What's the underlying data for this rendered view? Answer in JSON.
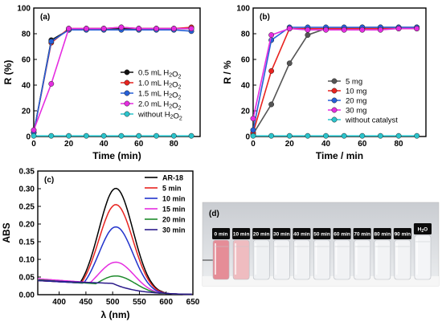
{
  "chart_data": [
    {
      "panel_label": "(a)",
      "type": "line",
      "xlabel": "Time (min)",
      "ylabel": "R (%)",
      "xlim": [
        0,
        95
      ],
      "ylim": [
        0,
        100
      ],
      "xticks": [
        0,
        20,
        40,
        60,
        80
      ],
      "yticks": [
        0,
        20,
        40,
        60,
        80,
        100
      ],
      "legend_position": "center-right",
      "series": [
        {
          "name": "0.5 mL H2O2",
          "color": "#111111",
          "x": [
            0,
            10,
            20,
            30,
            40,
            50,
            60,
            70,
            80,
            90
          ],
          "y": [
            3,
            75,
            83,
            84,
            84,
            84,
            84,
            84,
            84,
            84
          ]
        },
        {
          "name": "1.0 mL H2O2",
          "color": "#e8231f",
          "x": [
            0,
            10,
            20,
            30,
            40,
            50,
            60,
            70,
            80,
            90
          ],
          "y": [
            3,
            73,
            84,
            84,
            84,
            85,
            84,
            84,
            84,
            85
          ]
        },
        {
          "name": "1.5 mL H2O2",
          "color": "#2660d8",
          "x": [
            0,
            10,
            20,
            30,
            40,
            50,
            60,
            70,
            80,
            90
          ],
          "y": [
            3,
            74,
            83,
            83,
            83,
            83,
            83,
            83,
            83,
            82
          ]
        },
        {
          "name": "2.0 mL H2O2",
          "color": "#e52de0",
          "x": [
            0,
            10,
            20,
            30,
            40,
            50,
            60,
            70,
            80,
            90
          ],
          "y": [
            5,
            41,
            84,
            84,
            84,
            85,
            84,
            84,
            84,
            84
          ]
        },
        {
          "name": "without H2O2",
          "color": "#2bc4cc",
          "x": [
            0,
            10,
            20,
            30,
            40,
            50,
            60,
            70,
            80,
            90
          ],
          "y": [
            0.5,
            0.5,
            0.5,
            0.5,
            0.5,
            0.5,
            0.5,
            0.5,
            0.5,
            0.5
          ]
        }
      ]
    },
    {
      "panel_label": "(b)",
      "type": "line",
      "xlabel": "Time / min",
      "ylabel": "R / %",
      "xlim": [
        0,
        95
      ],
      "ylim": [
        0,
        100
      ],
      "xticks": [
        0,
        20,
        40,
        60,
        80
      ],
      "yticks": [
        0,
        20,
        40,
        60,
        80,
        100
      ],
      "legend_position": "lower-right",
      "series": [
        {
          "name": "5 mg",
          "color": "#555555",
          "x": [
            0,
            10,
            20,
            30,
            40,
            50,
            60,
            70,
            80,
            90
          ],
          "y": [
            2,
            25,
            57,
            79,
            84,
            84,
            85,
            85,
            85,
            85
          ]
        },
        {
          "name": "10 mg",
          "color": "#e8231f",
          "x": [
            0,
            10,
            20,
            30,
            40,
            50,
            60,
            70,
            80,
            90
          ],
          "y": [
            3,
            51,
            84,
            84,
            84,
            84,
            84,
            84,
            84,
            84
          ]
        },
        {
          "name": "20 mg",
          "color": "#2660d8",
          "x": [
            0,
            10,
            20,
            30,
            40,
            50,
            60,
            70,
            80,
            90
          ],
          "y": [
            5,
            75,
            85,
            85,
            85,
            85,
            85,
            85,
            85,
            85
          ]
        },
        {
          "name": "30 mg",
          "color": "#e52de0",
          "x": [
            0,
            10,
            20,
            30,
            40,
            50,
            60,
            70,
            80,
            90
          ],
          "y": [
            14,
            79,
            84,
            83,
            83,
            83,
            83,
            83,
            84,
            84
          ]
        },
        {
          "name": "without catalyst",
          "color": "#2bc4cc",
          "x": [
            0,
            10,
            20,
            30,
            40,
            50,
            60,
            70,
            80,
            90
          ],
          "y": [
            0.5,
            0.5,
            0.5,
            0.5,
            0.5,
            0.5,
            0.5,
            0.5,
            0.5,
            0.5
          ]
        }
      ]
    },
    {
      "panel_label": "(c)",
      "type": "line",
      "xlabel": "λ (nm)",
      "ylabel": "ABS",
      "xlim": [
        360,
        650
      ],
      "ylim": [
        0,
        0.35
      ],
      "xticks": [
        400,
        450,
        500,
        550,
        600,
        650
      ],
      "yticks": [
        0.0,
        0.05,
        0.1,
        0.15,
        0.2,
        0.25,
        0.3,
        0.35
      ],
      "legend_position": "top-right",
      "series": [
        {
          "name": "AR-18",
          "color": "#000000",
          "peak": 0.301,
          "base": 0.04,
          "tail": 0.028,
          "sigma": 32
        },
        {
          "name": "5 min",
          "color": "#e8231f",
          "peak": 0.255,
          "base": 0.04,
          "tail": 0.028,
          "sigma": 32
        },
        {
          "name": "10 min",
          "color": "#2233cc",
          "peak": 0.192,
          "base": 0.04,
          "tail": 0.028,
          "sigma": 32
        },
        {
          "name": "15 min",
          "color": "#e52de0",
          "peak": 0.092,
          "base": 0.045,
          "tail": 0.03,
          "sigma": 34
        },
        {
          "name": "20 min",
          "color": "#1e8a2c",
          "peak": 0.053,
          "base": 0.042,
          "tail": 0.028,
          "sigma": 36
        },
        {
          "name": "30 min",
          "color": "#2b1b8a",
          "peak": 0.006,
          "base": 0.04,
          "tail": 0.032,
          "sigma": 40
        }
      ]
    }
  ],
  "photo": {
    "panel_label": "(d)",
    "vials": [
      {
        "label": "0 min",
        "tint": "#e58d97"
      },
      {
        "label": "10 min",
        "tint": "#efbcc0"
      },
      {
        "label": "20 min",
        "tint": "#eef0f2"
      },
      {
        "label": "30 min",
        "tint": "#f1f2f4"
      },
      {
        "label": "40 min",
        "tint": "#f1f2f4"
      },
      {
        "label": "50 min",
        "tint": "#f1f2f4"
      },
      {
        "label": "60 min",
        "tint": "#f1f2f4"
      },
      {
        "label": "70 min",
        "tint": "#f2f3f5"
      },
      {
        "label": "80 min",
        "tint": "#f2f3f5"
      },
      {
        "label": "90 min",
        "tint": "#f2f3f5"
      },
      {
        "label": "H2O",
        "tint": "#f4f5f7"
      }
    ]
  }
}
